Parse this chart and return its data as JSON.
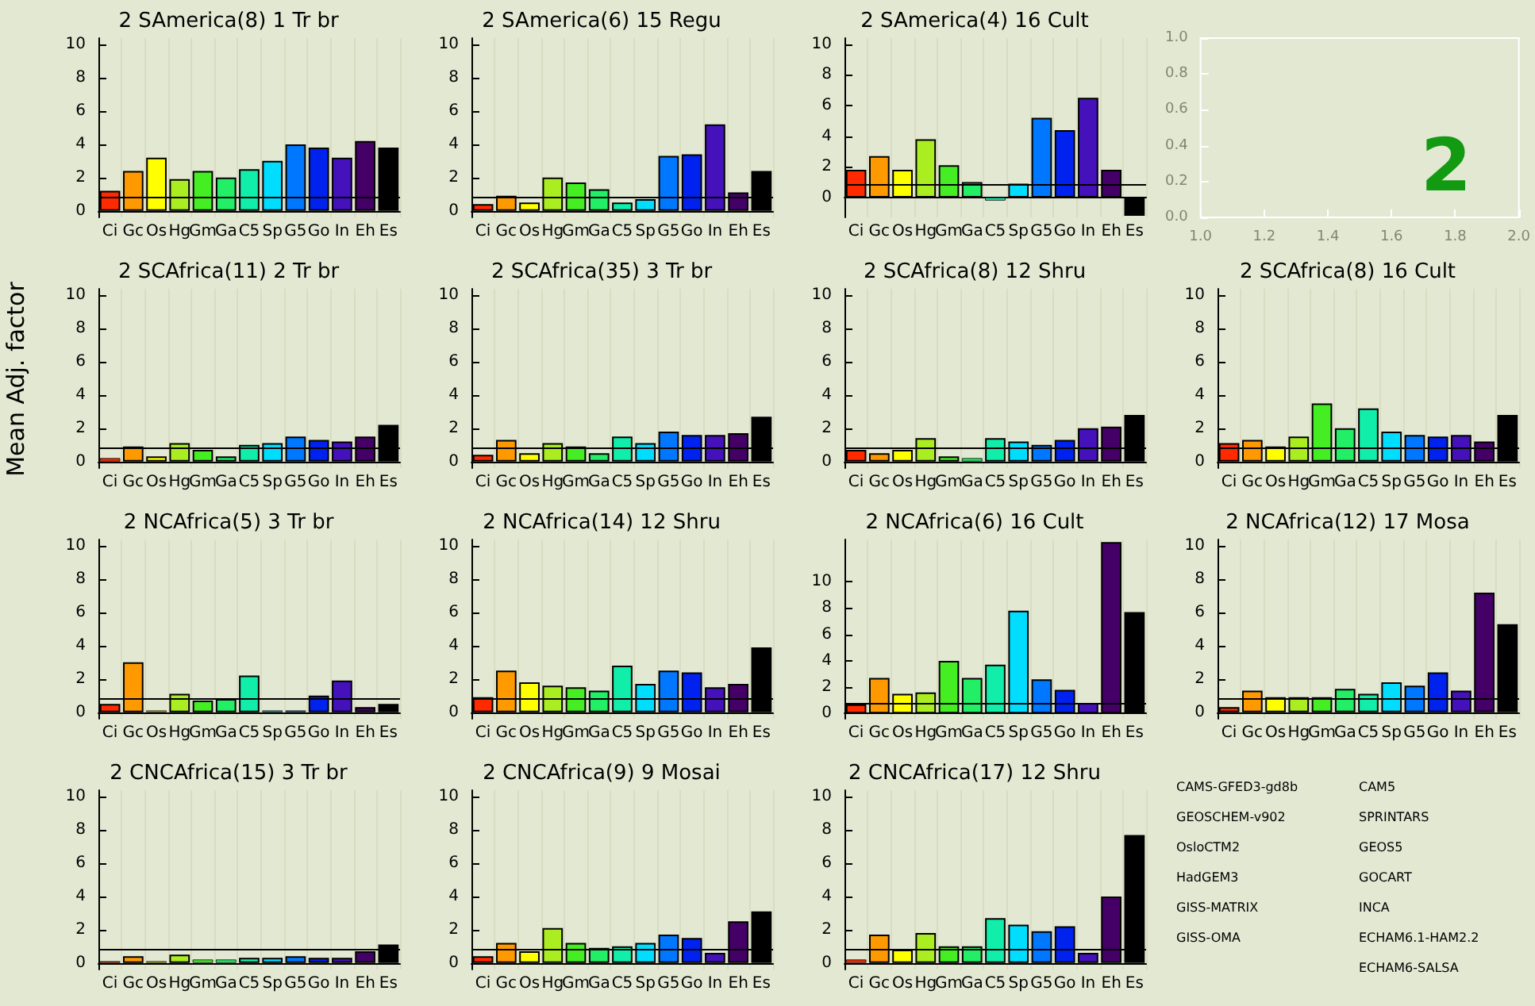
{
  "chart_data": [
    {
      "type": "bar",
      "title": "2 SAmerica(8) 1 Tr br",
      "ylabel": "Mean Adj. factor",
      "categories": [
        "Ci",
        "Gc",
        "Os",
        "Hg",
        "Gm",
        "Ga",
        "C5",
        "Sp",
        "G5",
        "Go",
        "In",
        "Eh",
        "Es"
      ],
      "values": [
        1.2,
        2.4,
        3.2,
        1.9,
        2.4,
        2.0,
        2.5,
        3.0,
        4.0,
        3.8,
        3.2,
        4.2,
        3.8
      ],
      "colors": [
        "#ff2a00",
        "#ff9900",
        "#ffff00",
        "#aaee22",
        "#44ee22",
        "#22ee66",
        "#11eeaa",
        "#00ddff",
        "#0077ff",
        "#0022ee",
        "#4411bb",
        "#440066",
        "#000000"
      ],
      "ylim": [
        -0.4,
        10.4
      ],
      "yticks": [
        0,
        2,
        4,
        6,
        8,
        10
      ],
      "grid": "x",
      "ref_lines": [
        {
          "axis": "y",
          "value": 0.8,
          "color": "#000000"
        }
      ]
    },
    {
      "type": "bar",
      "title": "2 SAmerica(6) 15 Regu",
      "categories": [
        "Ci",
        "Gc",
        "Os",
        "Hg",
        "Gm",
        "Ga",
        "C5",
        "Sp",
        "G5",
        "Go",
        "In",
        "Eh",
        "Es"
      ],
      "values": [
        0.4,
        0.9,
        0.5,
        2.0,
        1.7,
        1.3,
        0.5,
        0.7,
        3.3,
        3.4,
        5.2,
        1.1,
        2.4
      ],
      "colors": [
        "#ff2a00",
        "#ff9900",
        "#ffff00",
        "#aaee22",
        "#44ee22",
        "#22ee66",
        "#11eeaa",
        "#00ddff",
        "#0077ff",
        "#0022ee",
        "#4411bb",
        "#440066",
        "#000000"
      ],
      "ylim": [
        -0.4,
        10.4
      ],
      "yticks": [
        0,
        2,
        4,
        6,
        8,
        10
      ],
      "grid": "x",
      "ref_lines": [
        {
          "axis": "y",
          "value": 0.8,
          "color": "#000000"
        }
      ]
    },
    {
      "type": "bar",
      "title": "2 SAmerica(4) 16 Cult",
      "categories": [
        "Ci",
        "Gc",
        "Os",
        "Hg",
        "Gm",
        "Ga",
        "C5",
        "Sp",
        "G5",
        "Go",
        "In",
        "Eh",
        "Es"
      ],
      "values": [
        1.8,
        2.7,
        1.8,
        3.8,
        2.1,
        1.0,
        -0.2,
        0.9,
        5.2,
        4.4,
        6.5,
        1.8,
        -1.2
      ],
      "colors": [
        "#ff2a00",
        "#ff9900",
        "#ffff00",
        "#aaee22",
        "#44ee22",
        "#22ee66",
        "#11eeaa",
        "#00ddff",
        "#0077ff",
        "#0022ee",
        "#4411bb",
        "#440066",
        "#000000"
      ],
      "ylim": [
        -1.3,
        10.4
      ],
      "yticks": [
        0,
        2,
        4,
        6,
        8,
        10
      ],
      "grid": "x",
      "ref_lines": [
        {
          "axis": "y",
          "value": 0.8,
          "color": "#000000"
        }
      ]
    },
    {
      "type": "scatter",
      "xlim": [
        1,
        2
      ],
      "xticks": [
        {
          "value": 1,
          "label": "1.0"
        },
        {
          "value": 1.2,
          "label": "1.2"
        },
        {
          "value": 1.4,
          "label": "1.4"
        },
        {
          "value": 1.6,
          "label": "1.6"
        },
        {
          "value": 1.8,
          "label": "1.8"
        },
        {
          "value": 2,
          "label": "2.0"
        }
      ],
      "ylim": [
        0,
        1
      ],
      "yticks": [
        {
          "value": 0,
          "label": "0.0"
        },
        {
          "value": 0.2,
          "label": "0.2"
        },
        {
          "value": 0.4,
          "label": "0.4"
        },
        {
          "value": 0.6,
          "label": "0.6"
        },
        {
          "value": 0.8,
          "label": "0.8"
        },
        {
          "value": 1,
          "label": "1.0"
        }
      ],
      "annotations": [
        "2"
      ]
    },
    {
      "type": "bar",
      "title": "2 SCAfrica(11) 2 Tr br",
      "categories": [
        "Ci",
        "Gc",
        "Os",
        "Hg",
        "Gm",
        "Ga",
        "C5",
        "Sp",
        "G5",
        "Go",
        "In",
        "Eh",
        "Es"
      ],
      "values": [
        0.2,
        0.9,
        0.3,
        1.1,
        0.7,
        0.3,
        1.0,
        1.1,
        1.5,
        1.3,
        1.2,
        1.5,
        2.2
      ],
      "colors": [
        "#ff2a00",
        "#ff9900",
        "#ffff00",
        "#aaee22",
        "#44ee22",
        "#22ee66",
        "#11eeaa",
        "#00ddff",
        "#0077ff",
        "#0022ee",
        "#4411bb",
        "#440066",
        "#000000"
      ],
      "ylim": [
        -0.4,
        10.4
      ],
      "yticks": [
        0,
        2,
        4,
        6,
        8,
        10
      ],
      "grid": "x",
      "ref_lines": [
        {
          "axis": "y",
          "value": 0.8,
          "color": "#000000"
        }
      ]
    },
    {
      "type": "bar",
      "title": "2 SCAfrica(35) 3 Tr br",
      "categories": [
        "Ci",
        "Gc",
        "Os",
        "Hg",
        "Gm",
        "Ga",
        "C5",
        "Sp",
        "G5",
        "Go",
        "In",
        "Eh",
        "Es"
      ],
      "values": [
        0.4,
        1.3,
        0.5,
        1.1,
        0.9,
        0.5,
        1.5,
        1.1,
        1.8,
        1.6,
        1.6,
        1.7,
        2.7
      ],
      "colors": [
        "#ff2a00",
        "#ff9900",
        "#ffff00",
        "#aaee22",
        "#44ee22",
        "#22ee66",
        "#11eeaa",
        "#00ddff",
        "#0077ff",
        "#0022ee",
        "#4411bb",
        "#440066",
        "#000000"
      ],
      "ylim": [
        -0.4,
        10.4
      ],
      "yticks": [
        0,
        2,
        4,
        6,
        8,
        10
      ],
      "grid": "x",
      "ref_lines": [
        {
          "axis": "y",
          "value": 0.8,
          "color": "#000000"
        }
      ]
    },
    {
      "type": "bar",
      "title": "2 SCAfrica(8) 12 Shru",
      "categories": [
        "Ci",
        "Gc",
        "Os",
        "Hg",
        "Gm",
        "Ga",
        "C5",
        "Sp",
        "G5",
        "Go",
        "In",
        "Eh",
        "Es"
      ],
      "values": [
        0.7,
        0.5,
        0.7,
        1.4,
        0.3,
        0.2,
        1.4,
        1.2,
        1.0,
        1.3,
        2.0,
        2.1,
        2.8
      ],
      "colors": [
        "#ff2a00",
        "#ff9900",
        "#ffff00",
        "#aaee22",
        "#44ee22",
        "#22ee66",
        "#11eeaa",
        "#00ddff",
        "#0077ff",
        "#0022ee",
        "#4411bb",
        "#440066",
        "#000000"
      ],
      "ylim": [
        -0.4,
        10.4
      ],
      "yticks": [
        0,
        2,
        4,
        6,
        8,
        10
      ],
      "grid": "x",
      "ref_lines": [
        {
          "axis": "y",
          "value": 0.8,
          "color": "#000000"
        }
      ]
    },
    {
      "type": "bar",
      "title": "2 SCAfrica(8) 16 Cult",
      "categories": [
        "Ci",
        "Gc",
        "Os",
        "Hg",
        "Gm",
        "Ga",
        "C5",
        "Sp",
        "G5",
        "Go",
        "In",
        "Eh",
        "Es"
      ],
      "values": [
        1.1,
        1.3,
        0.9,
        1.5,
        3.5,
        2.0,
        3.2,
        1.8,
        1.6,
        1.5,
        1.6,
        1.2,
        2.8
      ],
      "colors": [
        "#ff2a00",
        "#ff9900",
        "#ffff00",
        "#aaee22",
        "#44ee22",
        "#22ee66",
        "#11eeaa",
        "#00ddff",
        "#0077ff",
        "#0022ee",
        "#4411bb",
        "#440066",
        "#000000"
      ],
      "ylim": [
        -0.4,
        10.4
      ],
      "yticks": [
        0,
        2,
        4,
        6,
        8,
        10
      ],
      "grid": "x",
      "ref_lines": [
        {
          "axis": "y",
          "value": 0.8,
          "color": "#000000"
        }
      ]
    },
    {
      "type": "bar",
      "title": "2 NCAfrica(5) 3 Tr br",
      "categories": [
        "Ci",
        "Gc",
        "Os",
        "Hg",
        "Gm",
        "Ga",
        "C5",
        "Sp",
        "G5",
        "Go",
        "In",
        "Eh",
        "Es"
      ],
      "values": [
        0.5,
        3.0,
        0.1,
        1.1,
        0.7,
        0.8,
        2.2,
        0.1,
        0.1,
        1.0,
        1.9,
        0.3,
        0.5
      ],
      "colors": [
        "#ff2a00",
        "#ff9900",
        "#ffff00",
        "#aaee22",
        "#44ee22",
        "#22ee66",
        "#11eeaa",
        "#00ddff",
        "#0077ff",
        "#0022ee",
        "#4411bb",
        "#440066",
        "#000000"
      ],
      "ylim": [
        -0.4,
        10.4
      ],
      "yticks": [
        0,
        2,
        4,
        6,
        8,
        10
      ],
      "grid": "x",
      "ref_lines": [
        {
          "axis": "y",
          "value": 0.8,
          "color": "#000000"
        }
      ]
    },
    {
      "type": "bar",
      "title": "2 NCAfrica(14) 12 Shru",
      "categories": [
        "Ci",
        "Gc",
        "Os",
        "Hg",
        "Gm",
        "Ga",
        "C5",
        "Sp",
        "G5",
        "Go",
        "In",
        "Eh",
        "Es"
      ],
      "values": [
        0.9,
        2.5,
        1.8,
        1.6,
        1.5,
        1.3,
        2.8,
        1.7,
        2.5,
        2.4,
        1.5,
        1.7,
        3.9
      ],
      "colors": [
        "#ff2a00",
        "#ff9900",
        "#ffff00",
        "#aaee22",
        "#44ee22",
        "#22ee66",
        "#11eeaa",
        "#00ddff",
        "#0077ff",
        "#0022ee",
        "#4411bb",
        "#440066",
        "#000000"
      ],
      "ylim": [
        -0.4,
        10.4
      ],
      "yticks": [
        0,
        2,
        4,
        6,
        8,
        10
      ],
      "grid": "x",
      "ref_lines": [
        {
          "axis": "y",
          "value": 0.8,
          "color": "#000000"
        }
      ]
    },
    {
      "type": "bar",
      "title": "2 NCAfrica(6) 16 Cult",
      "categories": [
        "Ci",
        "Gc",
        "Os",
        "Hg",
        "Gm",
        "Ga",
        "C5",
        "Sp",
        "G5",
        "Go",
        "In",
        "Eh",
        "Es"
      ],
      "values": [
        0.7,
        2.7,
        1.5,
        1.6,
        4.0,
        2.7,
        3.7,
        7.8,
        2.6,
        1.8,
        0.8,
        13,
        7.7
      ],
      "colors": [
        "#ff2a00",
        "#ff9900",
        "#ffff00",
        "#aaee22",
        "#44ee22",
        "#22ee66",
        "#11eeaa",
        "#00ddff",
        "#0077ff",
        "#0022ee",
        "#4411bb",
        "#440066",
        "#000000"
      ],
      "ylim": [
        -0.4,
        13.2
      ],
      "yticks": [
        0,
        2,
        4,
        6,
        8,
        10
      ],
      "grid": "x",
      "ref_lines": [
        {
          "axis": "y",
          "value": 0.8,
          "color": "#000000"
        }
      ]
    },
    {
      "type": "bar",
      "title": "2 NCAfrica(12) 17 Mosa",
      "categories": [
        "Ci",
        "Gc",
        "Os",
        "Hg",
        "Gm",
        "Ga",
        "C5",
        "Sp",
        "G5",
        "Go",
        "In",
        "Eh",
        "Es"
      ],
      "values": [
        0.3,
        1.3,
        0.9,
        0.9,
        0.9,
        1.4,
        1.1,
        1.8,
        1.6,
        2.4,
        1.3,
        7.2,
        5.3
      ],
      "colors": [
        "#ff2a00",
        "#ff9900",
        "#ffff00",
        "#aaee22",
        "#44ee22",
        "#22ee66",
        "#11eeaa",
        "#00ddff",
        "#0077ff",
        "#0022ee",
        "#4411bb",
        "#440066",
        "#000000"
      ],
      "ylim": [
        -0.4,
        10.4
      ],
      "yticks": [
        0,
        2,
        4,
        6,
        8,
        10
      ],
      "grid": "x",
      "ref_lines": [
        {
          "axis": "y",
          "value": 0.8,
          "color": "#000000"
        }
      ]
    },
    {
      "type": "bar",
      "title": "2 CNCAfrica(15) 3 Tr br",
      "categories": [
        "Ci",
        "Gc",
        "Os",
        "Hg",
        "Gm",
        "Ga",
        "C5",
        "Sp",
        "G5",
        "Go",
        "In",
        "Eh",
        "Es"
      ],
      "values": [
        0.1,
        0.4,
        0.1,
        0.5,
        0.2,
        0.2,
        0.3,
        0.3,
        0.4,
        0.3,
        0.3,
        0.7,
        1.1
      ],
      "colors": [
        "#ff2a00",
        "#ff9900",
        "#ffff00",
        "#aaee22",
        "#44ee22",
        "#22ee66",
        "#11eeaa",
        "#00ddff",
        "#0077ff",
        "#0022ee",
        "#4411bb",
        "#440066",
        "#000000"
      ],
      "ylim": [
        -0.4,
        10.4
      ],
      "yticks": [
        0,
        2,
        4,
        6,
        8,
        10
      ],
      "grid": "x",
      "ref_lines": [
        {
          "axis": "y",
          "value": 0.8,
          "color": "#000000"
        }
      ]
    },
    {
      "type": "bar",
      "title": "2 CNCAfrica(9) 9 Mosai",
      "categories": [
        "Ci",
        "Gc",
        "Os",
        "Hg",
        "Gm",
        "Ga",
        "C5",
        "Sp",
        "G5",
        "Go",
        "In",
        "Eh",
        "Es"
      ],
      "values": [
        0.4,
        1.2,
        0.7,
        2.1,
        1.2,
        0.9,
        1.0,
        1.2,
        1.7,
        1.5,
        0.6,
        2.5,
        3.1
      ],
      "colors": [
        "#ff2a00",
        "#ff9900",
        "#ffff00",
        "#aaee22",
        "#44ee22",
        "#22ee66",
        "#11eeaa",
        "#00ddff",
        "#0077ff",
        "#0022ee",
        "#4411bb",
        "#440066",
        "#000000"
      ],
      "ylim": [
        -0.4,
        10.4
      ],
      "yticks": [
        0,
        2,
        4,
        6,
        8,
        10
      ],
      "grid": "x",
      "ref_lines": [
        {
          "axis": "y",
          "value": 0.8,
          "color": "#000000"
        }
      ]
    },
    {
      "type": "bar",
      "title": "2 CNCAfrica(17) 12 Shru",
      "categories": [
        "Ci",
        "Gc",
        "Os",
        "Hg",
        "Gm",
        "Ga",
        "C5",
        "Sp",
        "G5",
        "Go",
        "In",
        "Eh",
        "Es"
      ],
      "values": [
        0.2,
        1.7,
        0.8,
        1.8,
        1.0,
        1.0,
        2.7,
        2.3,
        1.9,
        2.2,
        0.6,
        4.0,
        7.7
      ],
      "colors": [
        "#ff2a00",
        "#ff9900",
        "#ffff00",
        "#aaee22",
        "#44ee22",
        "#22ee66",
        "#11eeaa",
        "#00ddff",
        "#0077ff",
        "#0022ee",
        "#4411bb",
        "#440066",
        "#000000"
      ],
      "ylim": [
        -0.4,
        10.4
      ],
      "yticks": [
        0,
        2,
        4,
        6,
        8,
        10
      ],
      "grid": "x",
      "ref_lines": [
        {
          "axis": "y",
          "value": 0.8,
          "color": "#000000"
        }
      ]
    },
    {
      "type": "other",
      "annotations": [
        "CAMS-GFED3-gd8b",
        "GEOSCHEM-v902",
        "OsloCTM2",
        "HadGEM3",
        "GISS-MATRIX",
        "GISS-OMA",
        "CAM5",
        "SPRINTARS",
        "GEOS5",
        "GOCART",
        "INCA",
        "ECHAM6.1-HAM2.2",
        "ECHAM6-SALSA"
      ]
    }
  ]
}
